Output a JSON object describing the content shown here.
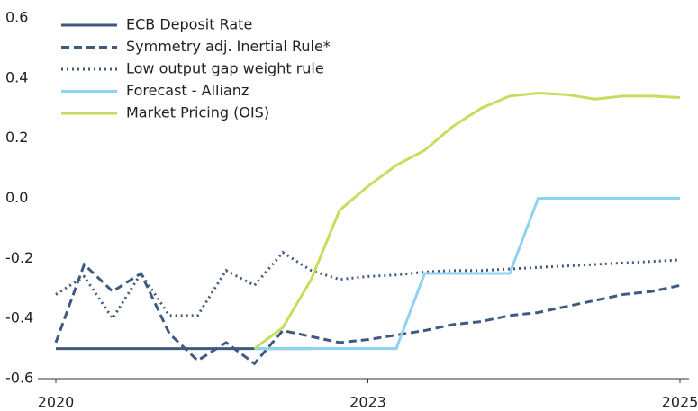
{
  "chart_data": {
    "type": "line",
    "categories": [
      "2020",
      null,
      null,
      null,
      null,
      null,
      null,
      null,
      null,
      null,
      null,
      "2023",
      null,
      null,
      null,
      null,
      null,
      null,
      null,
      null,
      null,
      null,
      "2025"
    ],
    "ylim": [
      -0.6,
      0.6
    ],
    "yticks": [
      0.6,
      0.4,
      0.2,
      {
        "value": 0,
        "label": "0.0"
      },
      -0.2,
      -0.4,
      -0.6
    ],
    "legend": "upper left",
    "series": [
      {
        "name": "ECB Deposit Rate",
        "color": "#3f5a80",
        "style": "solid",
        "values": [
          -0.5,
          -0.5,
          -0.5,
          -0.5,
          -0.5,
          -0.5,
          -0.5,
          -0.5,
          -0.5,
          -0.5,
          null,
          null,
          null,
          null,
          null,
          null,
          null,
          null,
          null,
          null,
          null,
          null,
          null
        ]
      },
      {
        "name": "Symmetry adj. Inertial Rule*",
        "color": "#3f5a80",
        "style": "dashed",
        "values": [
          -0.48,
          -0.22,
          -0.31,
          -0.25,
          -0.45,
          -0.54,
          -0.48,
          -0.55,
          -0.44,
          -0.46,
          -0.48,
          -0.47,
          -0.455,
          -0.44,
          -0.42,
          -0.41,
          -0.39,
          -0.38,
          -0.36,
          -0.34,
          -0.32,
          -0.31,
          -0.29
        ]
      },
      {
        "name": "Low output gap weight rule",
        "color": "#3f5a80",
        "style": "dotted",
        "values": [
          -0.32,
          -0.26,
          -0.4,
          -0.25,
          -0.39,
          -0.39,
          -0.24,
          -0.29,
          -0.18,
          -0.24,
          -0.27,
          -0.26,
          -0.255,
          -0.245,
          -0.24,
          -0.24,
          -0.235,
          -0.23,
          -0.225,
          -0.22,
          -0.215,
          -0.21,
          -0.205
        ]
      },
      {
        "name": "Forecast - Allianz",
        "color": "#8fd3f4",
        "style": "solid",
        "values": [
          null,
          null,
          null,
          null,
          null,
          null,
          null,
          -0.5,
          -0.5,
          -0.5,
          -0.5,
          -0.5,
          -0.5,
          -0.25,
          -0.25,
          -0.25,
          -0.25,
          0,
          0,
          0,
          0,
          0,
          0
        ]
      },
      {
        "name": "Market Pricing (OIS)",
        "color": "#c6dd5e",
        "style": "solid",
        "values": [
          null,
          null,
          null,
          null,
          null,
          null,
          null,
          -0.5,
          -0.43,
          -0.27,
          -0.04,
          0.04,
          0.11,
          0.16,
          0.24,
          0.3,
          0.34,
          0.35,
          0.345,
          0.33,
          0.34,
          0.34,
          0.335
        ]
      }
    ]
  }
}
